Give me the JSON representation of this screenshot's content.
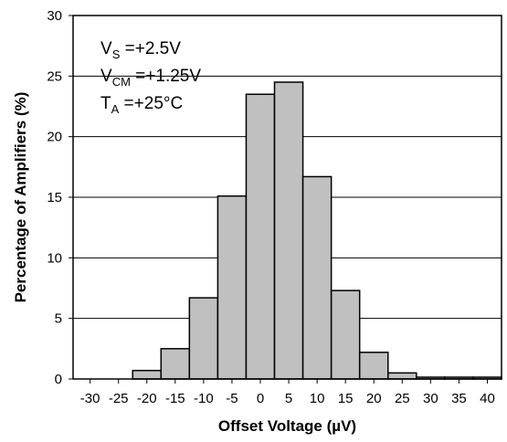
{
  "chart_data": {
    "type": "bar",
    "title": "",
    "xlabel": "Offset Voltage (µV)",
    "ylabel": "Percentage of Amplifiers (%)",
    "xlim": [
      -33,
      42.5
    ],
    "ylim": [
      0,
      30
    ],
    "x_ticks": [
      -30,
      -25,
      -20,
      -15,
      -10,
      -5,
      0,
      5,
      10,
      15,
      20,
      25,
      30,
      35,
      40
    ],
    "y_ticks": [
      0,
      5,
      10,
      15,
      20,
      25,
      30
    ],
    "grid": true,
    "bins": [
      {
        "x0": -22.5,
        "x1": -17.5,
        "value": 0.7
      },
      {
        "x0": -17.5,
        "x1": -12.5,
        "value": 2.5
      },
      {
        "x0": -12.5,
        "x1": -7.5,
        "value": 6.7
      },
      {
        "x0": -7.5,
        "x1": -2.5,
        "value": 15.1
      },
      {
        "x0": -2.5,
        "x1": 2.5,
        "value": 23.5
      },
      {
        "x0": 2.5,
        "x1": 7.5,
        "value": 24.5
      },
      {
        "x0": 7.5,
        "x1": 12.5,
        "value": 16.7
      },
      {
        "x0": 12.5,
        "x1": 17.5,
        "value": 7.3
      },
      {
        "x0": 17.5,
        "x1": 22.5,
        "value": 2.2
      },
      {
        "x0": 22.5,
        "x1": 27.5,
        "value": 0.5
      },
      {
        "x0": 27.5,
        "x1": 32.5,
        "value": 0.15
      },
      {
        "x0": 32.5,
        "x1": 37.5,
        "value": 0.15
      },
      {
        "x0": 37.5,
        "x1": 42.5,
        "value": 0.15
      }
    ],
    "bar_fill": "#c0c0c0",
    "bar_stroke": "#000000",
    "annotations": [
      {
        "main": "V",
        "sub": "S",
        "rest": " =+2.5V"
      },
      {
        "main": "V",
        "sub": "CM",
        "rest": " =+1.25V"
      },
      {
        "main": "T",
        "sub": "A",
        "rest": " =+25°C"
      }
    ]
  }
}
